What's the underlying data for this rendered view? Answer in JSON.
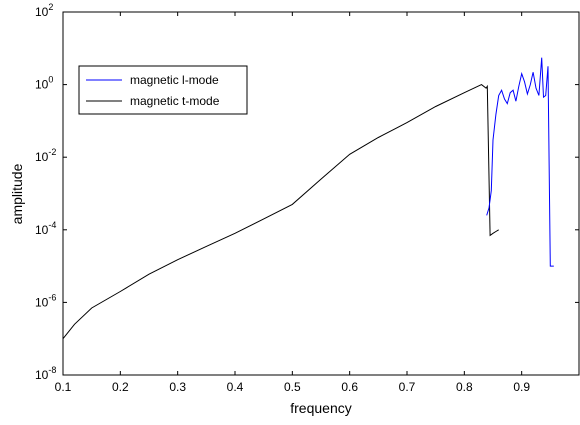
{
  "chart_data": {
    "type": "line",
    "title": "",
    "xlabel": "frequency",
    "ylabel": "amplitude",
    "x_scale": "linear",
    "y_scale": "log",
    "xlim": [
      0.1,
      1.0
    ],
    "ylim": [
      1e-08,
      100
    ],
    "x_ticks": [
      0.1,
      0.2,
      0.3,
      0.4,
      0.5,
      0.6,
      0.7,
      0.8,
      0.9
    ],
    "x_tick_labels": [
      "0.1",
      "0.2",
      "0.3",
      "0.4",
      "0.5",
      "0.6",
      "0.7",
      "0.8",
      "0.9"
    ],
    "y_ticks": [
      1e-08,
      1e-06,
      0.0001,
      0.01,
      1,
      100
    ],
    "y_tick_labels": [
      {
        "base": "10",
        "exp": "-8"
      },
      {
        "base": "10",
        "exp": "-6"
      },
      {
        "base": "10",
        "exp": "-4"
      },
      {
        "base": "10",
        "exp": "-2"
      },
      {
        "base": "10",
        "exp": "0"
      },
      {
        "base": "10",
        "exp": "2"
      }
    ],
    "grid": false,
    "legend_position": "upper-left",
    "series": [
      {
        "name": "magnetic l-mode",
        "color": "#0000ff",
        "x": [
          0.839,
          0.843,
          0.847,
          0.85,
          0.855,
          0.86,
          0.865,
          0.87,
          0.875,
          0.88,
          0.885,
          0.89,
          0.895,
          0.9,
          0.905,
          0.91,
          0.915,
          0.92,
          0.925,
          0.93,
          0.935,
          0.938,
          0.942,
          0.946,
          0.95,
          0.953,
          0.956
        ],
        "y": [
          0.00025,
          0.0004,
          0.0012,
          0.03,
          0.15,
          0.5,
          0.7,
          0.4,
          0.3,
          0.6,
          0.7,
          0.35,
          0.9,
          2.0,
          1.2,
          0.55,
          1.0,
          2.2,
          0.8,
          0.5,
          5.5,
          0.45,
          0.5,
          3.2,
          1e-05,
          1e-05,
          1e-05
        ]
      },
      {
        "name": "magnetic t-mode",
        "color": "#000000",
        "x": [
          0.1,
          0.12,
          0.15,
          0.2,
          0.25,
          0.3,
          0.35,
          0.4,
          0.45,
          0.5,
          0.55,
          0.6,
          0.65,
          0.7,
          0.75,
          0.8,
          0.83,
          0.838,
          0.84,
          0.845,
          0.85,
          0.855,
          0.86
        ],
        "y": [
          1e-07,
          2.5e-07,
          7e-07,
          2e-06,
          6e-06,
          1.5e-05,
          3.5e-05,
          8e-05,
          0.0002,
          0.0005,
          0.0025,
          0.012,
          0.035,
          0.09,
          0.25,
          0.6,
          1.0,
          0.8,
          0.9,
          7e-05,
          8e-05,
          9e-05,
          0.0001
        ]
      }
    ]
  }
}
